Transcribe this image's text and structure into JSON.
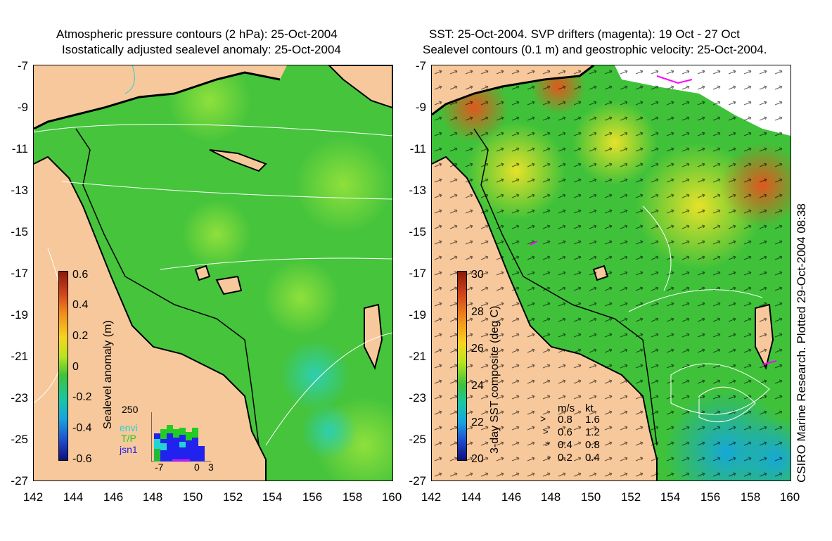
{
  "left_panel": {
    "title_line1": "Atmospheric pressure contours (2 hPa): 25-Oct-2004",
    "title_line2": "Isostatically adjusted sealevel anomaly: 25-Oct-2004",
    "colorbar_label": "Sealevel anomaly (m)",
    "colorbar_ticks": [
      "0.6",
      "0.4",
      "0.2",
      "0",
      "-0.2",
      "-0.4",
      "-0.6"
    ],
    "colorbar_range": [
      -0.6,
      0.6
    ],
    "inset": {
      "ymax_label": "250",
      "series": [
        {
          "name": "envi",
          "color": "#22d3d3"
        },
        {
          "name": "T/P",
          "color": "#22cc22"
        },
        {
          "name": "jsn1",
          "color": "#2222ee"
        }
      ],
      "x_labels": [
        "-7",
        "0",
        "3"
      ]
    }
  },
  "right_panel": {
    "title_line1": "SST: 25-Oct-2004. SVP drifters (magenta): 19 Oct - 27 Oct",
    "title_line2": "Sealevel contours (0.1 m) and geostrophic velocity: 25-Oct-2004.",
    "colorbar_label": "3-day SST composite (deg C)",
    "colorbar_ticks": [
      "30",
      "28",
      "26",
      "24",
      "22",
      "20"
    ],
    "colorbar_range": [
      20,
      30
    ],
    "velocity_legend": {
      "header_ms": "m/s",
      "header_kt": "kt",
      "rows": [
        {
          "ms": "0.8",
          "kt": "1.6"
        },
        {
          "ms": "0.6",
          "kt": "1.2"
        },
        {
          "ms": "0.4",
          "kt": "0.8"
        },
        {
          "ms": "0.2",
          "kt": "0.4"
        }
      ]
    }
  },
  "axes": {
    "lat_labels": [
      "-7",
      "-9",
      "-11",
      "-13",
      "-15",
      "-17",
      "-19",
      "-21",
      "-23",
      "-25",
      "-27"
    ],
    "lon_labels": [
      "142",
      "144",
      "146",
      "148",
      "150",
      "152",
      "154",
      "156",
      "158",
      "160"
    ]
  },
  "credit": "CSIRO Marine Research. Plotted 29-Oct-2004 08:38",
  "colors": {
    "land": "#f7c89b",
    "ocean_green": "#3fc23a",
    "ocean_light": "#86d83a",
    "magenta": "#ff00ff"
  }
}
